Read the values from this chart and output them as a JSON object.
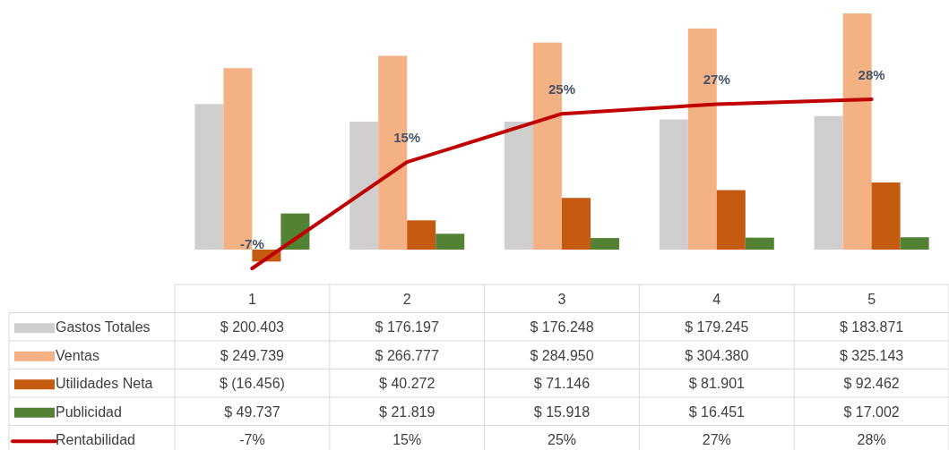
{
  "chart_data": {
    "type": "bar",
    "categories": [
      "1",
      "2",
      "3",
      "4",
      "5"
    ],
    "series": [
      {
        "name": "Gastos Totales",
        "color": "#d0cece",
        "values": [
          200403,
          176197,
          176248,
          179245,
          183871
        ],
        "value_labels": [
          "$ 200.403",
          "$ 176.197",
          "$ 176.248",
          "$ 179.245",
          "$ 183.871"
        ]
      },
      {
        "name": "Ventas",
        "color": "#f4b183",
        "values": [
          249739,
          266777,
          284950,
          304380,
          325143
        ],
        "value_labels": [
          "$ 249.739",
          "$ 266.777",
          "$ 284.950",
          "$ 304.380",
          "$ 325.143"
        ]
      },
      {
        "name": "Utilidades Neta",
        "color": "#c55a11",
        "values": [
          -16456,
          40272,
          71146,
          81901,
          92462
        ],
        "value_labels": [
          "$ (16.456)",
          "$ 40.272",
          "$ 71.146",
          "$ 81.901",
          "$ 92.462"
        ]
      },
      {
        "name": "Publicidad",
        "color": "#548235",
        "values": [
          49737,
          21819,
          15918,
          16451,
          17002
        ],
        "value_labels": [
          "$ 49.737",
          "$ 21.819",
          "$ 15.918",
          "$ 16.451",
          "$ 17.002"
        ]
      },
      {
        "name": "Rentabilidad",
        "type": "line",
        "axis": "y2",
        "color": "#c00000",
        "values": [
          -7,
          15,
          25,
          27,
          28
        ],
        "value_labels": [
          "-7%",
          "15%",
          "25%",
          "27%",
          "28%"
        ]
      }
    ],
    "tick_labels": "x",
    "data_labels": true,
    "legend": "bottom"
  }
}
